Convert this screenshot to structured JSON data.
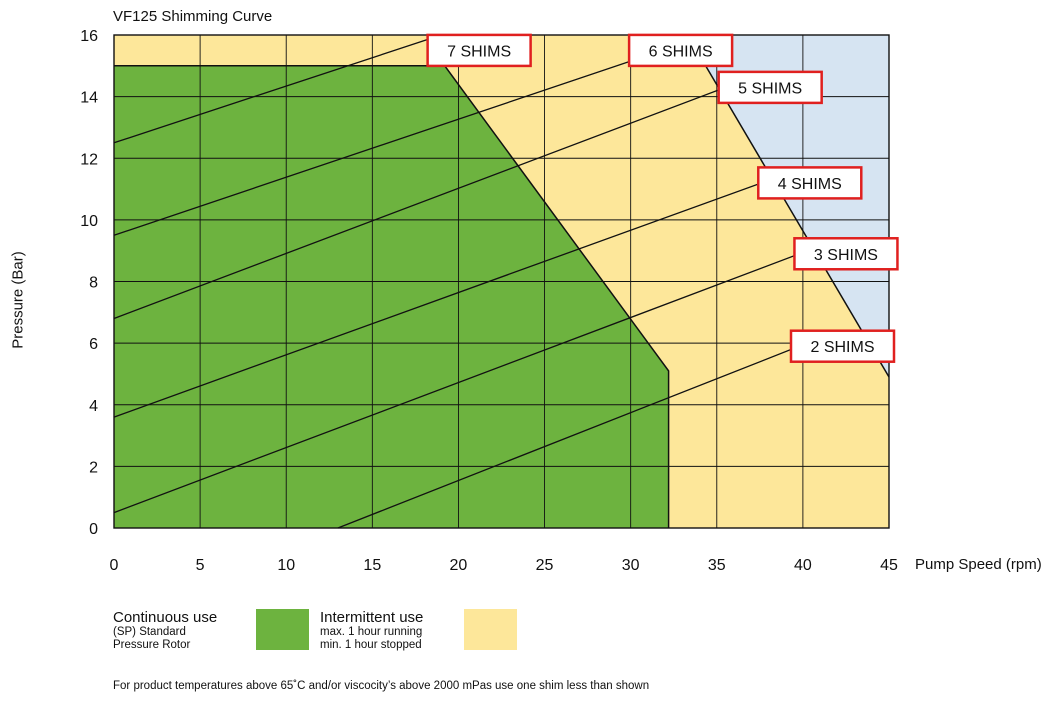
{
  "chart_data": {
    "type": "area",
    "title": "VF125 Shimming Curve",
    "xlabel": "Pump Speed (rpm)",
    "ylabel": "Pressure (Bar)",
    "xlim": [
      0,
      45
    ],
    "ylim": [
      0,
      16
    ],
    "x_ticks": [
      0,
      5,
      10,
      15,
      20,
      25,
      30,
      35,
      40,
      45
    ],
    "y_ticks": [
      0,
      2,
      4,
      6,
      8,
      10,
      12,
      14,
      16
    ],
    "grid": true,
    "colors": {
      "continuous": "#6db33f",
      "intermittent": "#fde79a",
      "outside": "#d6e4f2",
      "label_border": "#e0201f"
    },
    "regions": [
      {
        "key": "outside",
        "points": [
          [
            0,
            0
          ],
          [
            45,
            0
          ],
          [
            45,
            16
          ],
          [
            0,
            16
          ]
        ]
      },
      {
        "key": "intermittent",
        "points": [
          [
            0,
            0
          ],
          [
            45,
            0
          ],
          [
            45,
            4.9
          ],
          [
            33.3,
            16
          ],
          [
            0,
            16
          ]
        ]
      },
      {
        "key": "continuous",
        "points": [
          [
            0,
            0
          ],
          [
            32.2,
            0
          ],
          [
            32.2,
            5.1
          ],
          [
            19.2,
            15
          ],
          [
            0,
            15
          ]
        ]
      }
    ],
    "shim_lines": [
      {
        "label": "7 SHIMS",
        "points": [
          [
            0,
            12.5
          ],
          [
            19.0,
            16
          ]
        ],
        "label_at": [
          21.2,
          15.5
        ]
      },
      {
        "label": "6 SHIMS",
        "points": [
          [
            0,
            9.5
          ],
          [
            34.5,
            16
          ]
        ],
        "label_at": [
          32.9,
          15.5
        ]
      },
      {
        "label": "5 SHIMS",
        "points": [
          [
            0,
            6.8
          ],
          [
            35.5,
            14.3
          ],
          [
            38.1,
            14.3
          ]
        ],
        "label_at": [
          38.1,
          14.3
        ]
      },
      {
        "label": "4 SHIMS",
        "points": [
          [
            0,
            3.6
          ],
          [
            37.6,
            11.2
          ],
          [
            40.4,
            11.2
          ]
        ],
        "label_at": [
          40.4,
          11.2
        ]
      },
      {
        "label": "3 SHIMS",
        "points": [
          [
            0,
            0.5
          ],
          [
            39.8,
            8.9
          ],
          [
            42.5,
            8.9
          ]
        ],
        "label_at": [
          42.5,
          8.9
        ]
      },
      {
        "label": "2 SHIMS",
        "points": [
          [
            13.0,
            0
          ],
          [
            39.8,
            5.9
          ],
          [
            42.3,
            5.9
          ]
        ],
        "label_at": [
          42.3,
          5.9
        ]
      }
    ]
  },
  "legend": {
    "continuous_title": "Continuous use",
    "continuous_line1": "(SP) Standard",
    "continuous_line2": "Pressure Rotor",
    "intermittent_title": "Intermittent use",
    "intermittent_line1": "max. 1 hour running",
    "intermittent_line2": "min. 1 hour stopped"
  },
  "footnote": "For product temperatures above 65˚C and/or viscocity’s above 2000 mPas use one shim less than shown"
}
